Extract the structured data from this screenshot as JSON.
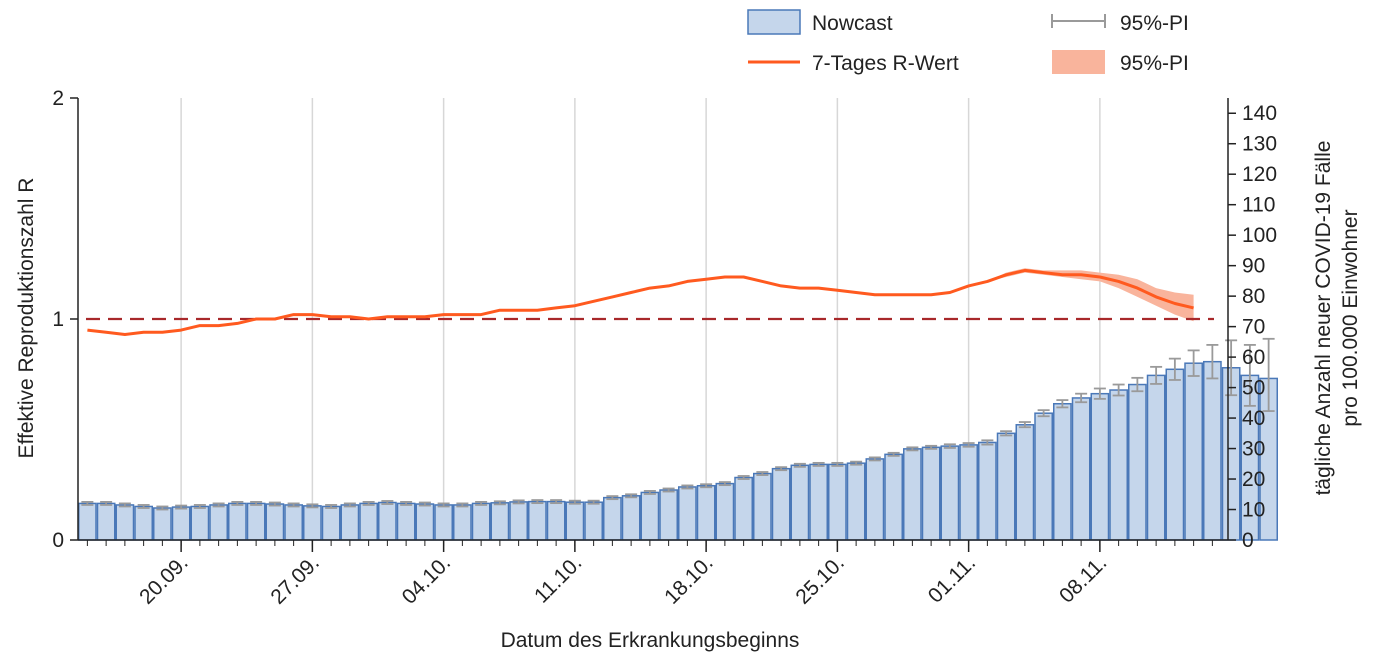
{
  "chart_data": {
    "type": "bar",
    "title": "",
    "xlabel": "Datum des Erkrankungsbeginns",
    "ylabel_left": "Effektive Reproduktionszahl R",
    "ylabel_right_line1": "tägliche Anzahl neuer COVID-19 Fälle",
    "ylabel_right_line2": "pro 100.000 Einwohner",
    "y_left_range": [
      0,
      2
    ],
    "y_left_ticks": [
      "0",
      "1",
      "2"
    ],
    "y_right_range": [
      0,
      145
    ],
    "y_right_ticks": [
      "0",
      "10",
      "20",
      "30",
      "40",
      "50",
      "60",
      "70",
      "80",
      "90",
      "100",
      "110",
      "120",
      "130",
      "140"
    ],
    "x_tick_labels": [
      "20.09.",
      "27.09.",
      "04.10.",
      "11.10.",
      "18.10.",
      "25.10.",
      "01.11.",
      "08.11."
    ],
    "x_tick_day_index": [
      5,
      12,
      19,
      26,
      33,
      40,
      47,
      54
    ],
    "reference_line": 1,
    "grid": "vertical",
    "legend_position": "top-right",
    "legend": {
      "nowcast": "Nowcast",
      "bar_pi": "95%-PI",
      "rline": "7-Tages R-Wert",
      "rband": "95%-PI"
    },
    "colors": {
      "bar_fill": "#c5d6eb",
      "bar_edge": "#4a78b8",
      "errorbar": "#9a9a9a",
      "rline": "#ff5a1f",
      "rband": "#f9b49c",
      "refline": "#a8282a",
      "grid": "#d7d7d7"
    },
    "bars": {
      "name": "Nowcast",
      "day_start": 0,
      "values": [
        12,
        12,
        11.5,
        11,
        10.5,
        10.8,
        11,
        11.5,
        12,
        12,
        11.8,
        11.5,
        11.2,
        11,
        11.5,
        12,
        12.3,
        12,
        11.8,
        11.5,
        11.5,
        12,
        12.2,
        12.5,
        12.6,
        12.6,
        12.4,
        12.4,
        13.9,
        14.5,
        15.6,
        16.4,
        17.4,
        17.8,
        18.5,
        20.5,
        21.8,
        23.4,
        24.5,
        24.8,
        24.8,
        25.2,
        26.6,
        28.1,
        29.9,
        30.4,
        30.8,
        31.2,
        32.0,
        35,
        37.8,
        41.6,
        44.7,
        46.6,
        48.0,
        49.2,
        51,
        54,
        56,
        58,
        58.5,
        56.5,
        54,
        53
      ],
      "ci_low": [
        11.5,
        11.5,
        11,
        10.5,
        10,
        10.3,
        10.5,
        11,
        11.5,
        11.5,
        11.3,
        11,
        10.7,
        10.5,
        11,
        11.5,
        11.8,
        11.5,
        11.3,
        11,
        11,
        11.5,
        11.7,
        12,
        12.1,
        12.1,
        11.9,
        11.9,
        13.4,
        14,
        15.1,
        15.9,
        16.9,
        17.3,
        18,
        20,
        21.3,
        22.9,
        24,
        24.3,
        24.3,
        24.7,
        26.1,
        27.6,
        29.4,
        29.9,
        30.2,
        30.6,
        31.3,
        34.3,
        37,
        40.6,
        43.5,
        45.2,
        46.3,
        47.4,
        48.8,
        51.2,
        52.5,
        53.8,
        53,
        47.5,
        44,
        42.3
      ],
      "ci_high": [
        12.5,
        12.5,
        12,
        11.5,
        11,
        11.3,
        11.5,
        12,
        12.5,
        12.5,
        12.3,
        12,
        11.7,
        11.5,
        12,
        12.5,
        12.8,
        12.5,
        12.3,
        12,
        12,
        12.5,
        12.7,
        13,
        13.1,
        13.1,
        12.9,
        12.9,
        14.4,
        15,
        16.1,
        16.9,
        17.9,
        18.3,
        19,
        21,
        22.3,
        23.9,
        25,
        25.3,
        25.3,
        25.7,
        27.1,
        28.6,
        30.4,
        30.9,
        31.4,
        31.8,
        32.7,
        35.7,
        38.7,
        42.6,
        45.9,
        48,
        49.7,
        51,
        53.2,
        56.8,
        59.5,
        62.2,
        64,
        65.5,
        64,
        66
      ]
    },
    "r_line": {
      "name": "7-Tages R-Wert",
      "day_start": 0,
      "values": [
        0.95,
        0.94,
        0.93,
        0.94,
        0.94,
        0.95,
        0.97,
        0.97,
        0.98,
        1.0,
        1.0,
        1.02,
        1.02,
        1.01,
        1.01,
        1.0,
        1.01,
        1.01,
        1.01,
        1.02,
        1.02,
        1.02,
        1.04,
        1.04,
        1.04,
        1.05,
        1.06,
        1.08,
        1.1,
        1.12,
        1.14,
        1.15,
        1.17,
        1.18,
        1.19,
        1.19,
        1.17,
        1.15,
        1.14,
        1.14,
        1.13,
        1.12,
        1.11,
        1.11,
        1.11,
        1.11,
        1.12,
        1.15,
        1.17,
        1.2,
        1.22,
        1.21,
        1.2,
        1.2,
        1.19,
        1.17,
        1.14,
        1.1,
        1.07,
        1.05
      ],
      "band_low": [
        0.95,
        0.94,
        0.93,
        0.94,
        0.94,
        0.95,
        0.97,
        0.97,
        0.98,
        1.0,
        1.0,
        1.02,
        1.02,
        1.01,
        1.01,
        1.0,
        1.01,
        1.01,
        1.01,
        1.02,
        1.02,
        1.02,
        1.04,
        1.04,
        1.04,
        1.05,
        1.06,
        1.08,
        1.1,
        1.12,
        1.14,
        1.15,
        1.17,
        1.18,
        1.19,
        1.19,
        1.17,
        1.15,
        1.14,
        1.14,
        1.13,
        1.12,
        1.11,
        1.11,
        1.11,
        1.11,
        1.12,
        1.15,
        1.17,
        1.19,
        1.21,
        1.2,
        1.19,
        1.18,
        1.17,
        1.14,
        1.1,
        1.06,
        1.02,
        0.99
      ],
      "band_high": [
        0.95,
        0.94,
        0.93,
        0.94,
        0.94,
        0.95,
        0.97,
        0.97,
        0.98,
        1.0,
        1.0,
        1.02,
        1.02,
        1.01,
        1.01,
        1.0,
        1.01,
        1.01,
        1.01,
        1.02,
        1.02,
        1.02,
        1.04,
        1.04,
        1.04,
        1.05,
        1.06,
        1.08,
        1.1,
        1.12,
        1.14,
        1.15,
        1.17,
        1.18,
        1.19,
        1.19,
        1.17,
        1.15,
        1.14,
        1.14,
        1.13,
        1.12,
        1.11,
        1.11,
        1.11,
        1.11,
        1.12,
        1.15,
        1.17,
        1.21,
        1.23,
        1.22,
        1.22,
        1.22,
        1.21,
        1.2,
        1.18,
        1.14,
        1.12,
        1.11
      ]
    }
  }
}
